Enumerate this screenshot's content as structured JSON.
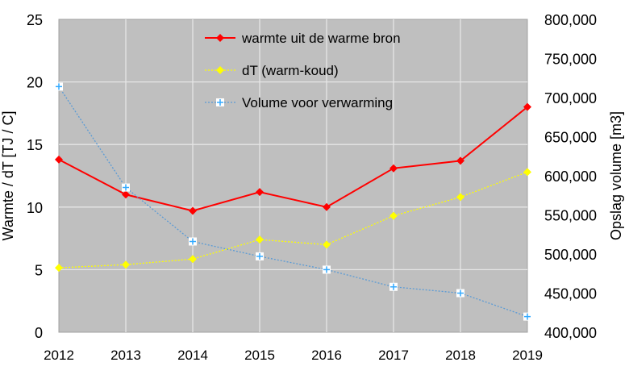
{
  "chart_data": {
    "type": "line",
    "x": [
      2012,
      2013,
      2014,
      2015,
      2016,
      2017,
      2018,
      2019
    ],
    "ylabel": "Warmte / dT [TJ / C]",
    "y2label": "Opslag volume [m3]",
    "ylim": [
      0,
      25
    ],
    "y2lim": [
      400000,
      800000
    ],
    "yticks": [
      "0",
      "5",
      "10",
      "15",
      "20",
      "25"
    ],
    "y2ticks": [
      "400,000",
      "450,000",
      "500,000",
      "550,000",
      "600,000",
      "650,000",
      "700,000",
      "750,000",
      "800,000"
    ],
    "grid": true,
    "legend_placement": "top-center",
    "series": [
      {
        "name": "warmte uit de warme bron",
        "axis": "left",
        "color": "#ff0000",
        "style": "solid",
        "marker": "diamond",
        "values": [
          13.8,
          11.0,
          9.7,
          11.2,
          10.0,
          13.1,
          13.7,
          18.0
        ]
      },
      {
        "name": "dT (warm-koud)",
        "axis": "left",
        "color": "#ffff00",
        "style": "dotted",
        "marker": "diamond",
        "values": [
          5.15,
          5.4,
          5.85,
          7.4,
          7.0,
          9.3,
          10.8,
          12.8
        ]
      },
      {
        "name": "Volume voor verwarming",
        "axis": "right",
        "color": "#5b9bd5",
        "style": "dotted",
        "marker": "square-plus",
        "values": [
          714000,
          585000,
          516000,
          497000,
          480000,
          458000,
          450000,
          420000
        ]
      }
    ]
  }
}
